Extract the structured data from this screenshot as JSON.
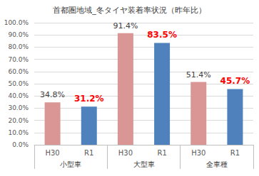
{
  "chart_data": {
    "type": "bar",
    "title": "首都圏地域_冬タイヤ装着率状況（昨年比）",
    "categories": [
      "小型車",
      "大型車",
      "全車種"
    ],
    "series": [
      {
        "name": "H30",
        "color": "#d99694",
        "values": [
          34.8,
          91.4,
          51.4
        ],
        "value_labels": [
          "34.8%",
          "91.4%",
          "51.4%"
        ]
      },
      {
        "name": "R1",
        "color": "#4f81bd",
        "values": [
          31.2,
          83.5,
          45.7
        ],
        "value_labels": [
          "31.2%",
          "83.5%",
          "45.7%"
        ]
      }
    ],
    "ylim": [
      0,
      100
    ],
    "yticks": [
      {
        "value": 0,
        "label": "0.0%"
      },
      {
        "value": 10,
        "label": "10.0%"
      },
      {
        "value": 20,
        "label": "20.0%"
      },
      {
        "value": 30,
        "label": "30.0%"
      },
      {
        "value": 40,
        "label": "40.0%"
      },
      {
        "value": 50,
        "label": "50.0%"
      },
      {
        "value": 60,
        "label": "60.0%"
      },
      {
        "value": 70,
        "label": "70.0%"
      },
      {
        "value": 80,
        "label": "80.0%"
      },
      {
        "value": 90,
        "label": "90.0%"
      },
      {
        "value": 100,
        "label": "100.0%"
      }
    ],
    "grid": true,
    "data_labels": true
  }
}
